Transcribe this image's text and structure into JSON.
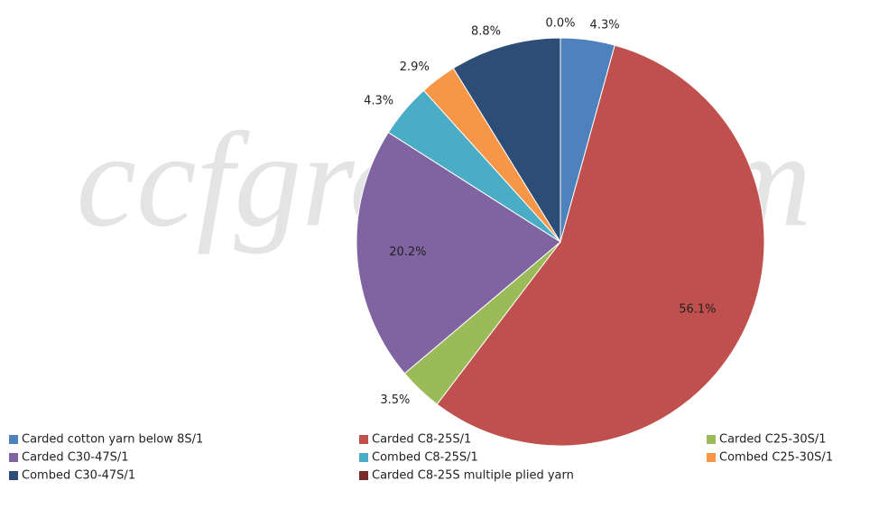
{
  "chart_data": {
    "type": "pie",
    "watermark": "ccfgroup.com",
    "categories": [
      "Carded cotton yarn below 8S/1",
      "Carded C8-25S/1",
      "Carded C25-30S/1",
      "Carded C30-47S/1",
      "Combed C8-25S/1",
      "Combed C25-30S/1",
      "Combed C30-47S/1",
      "Carded C8-25S multiple plied yarn"
    ],
    "values": [
      4.3,
      56.1,
      3.5,
      20.2,
      4.3,
      2.9,
      8.8,
      0.0
    ],
    "value_labels": [
      "4.3%",
      "56.1%",
      "3.5%",
      "20.2%",
      "4.3%",
      "2.9%",
      "8.8%",
      "0.0%"
    ],
    "colors": [
      "#4f81bd",
      "#c0504d",
      "#9bbb59",
      "#8064a2",
      "#4bacc6",
      "#f79646",
      "#2c4d75",
      "#772c2a"
    ],
    "legend": "bottom"
  }
}
